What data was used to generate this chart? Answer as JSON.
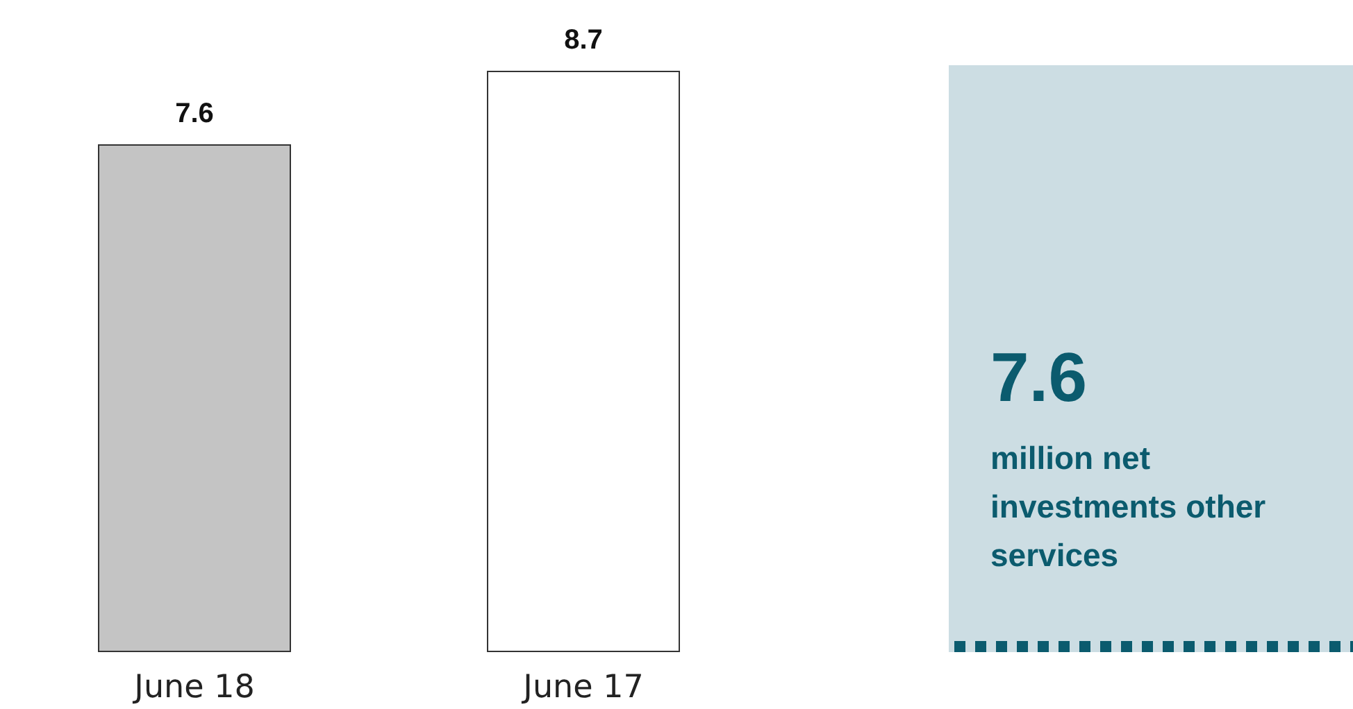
{
  "chart_data": [
    {
      "type": "bar",
      "categories": [
        "June 18",
        "June 17"
      ],
      "values": [
        7.6,
        8.7
      ],
      "colors": [
        "#c4c4c4",
        "#ffffff"
      ],
      "data_labels": true,
      "tick_labels": "x"
    },
    {
      "type": "other",
      "title": "7.6",
      "subtitle": "million net investments other services"
    }
  ]
}
